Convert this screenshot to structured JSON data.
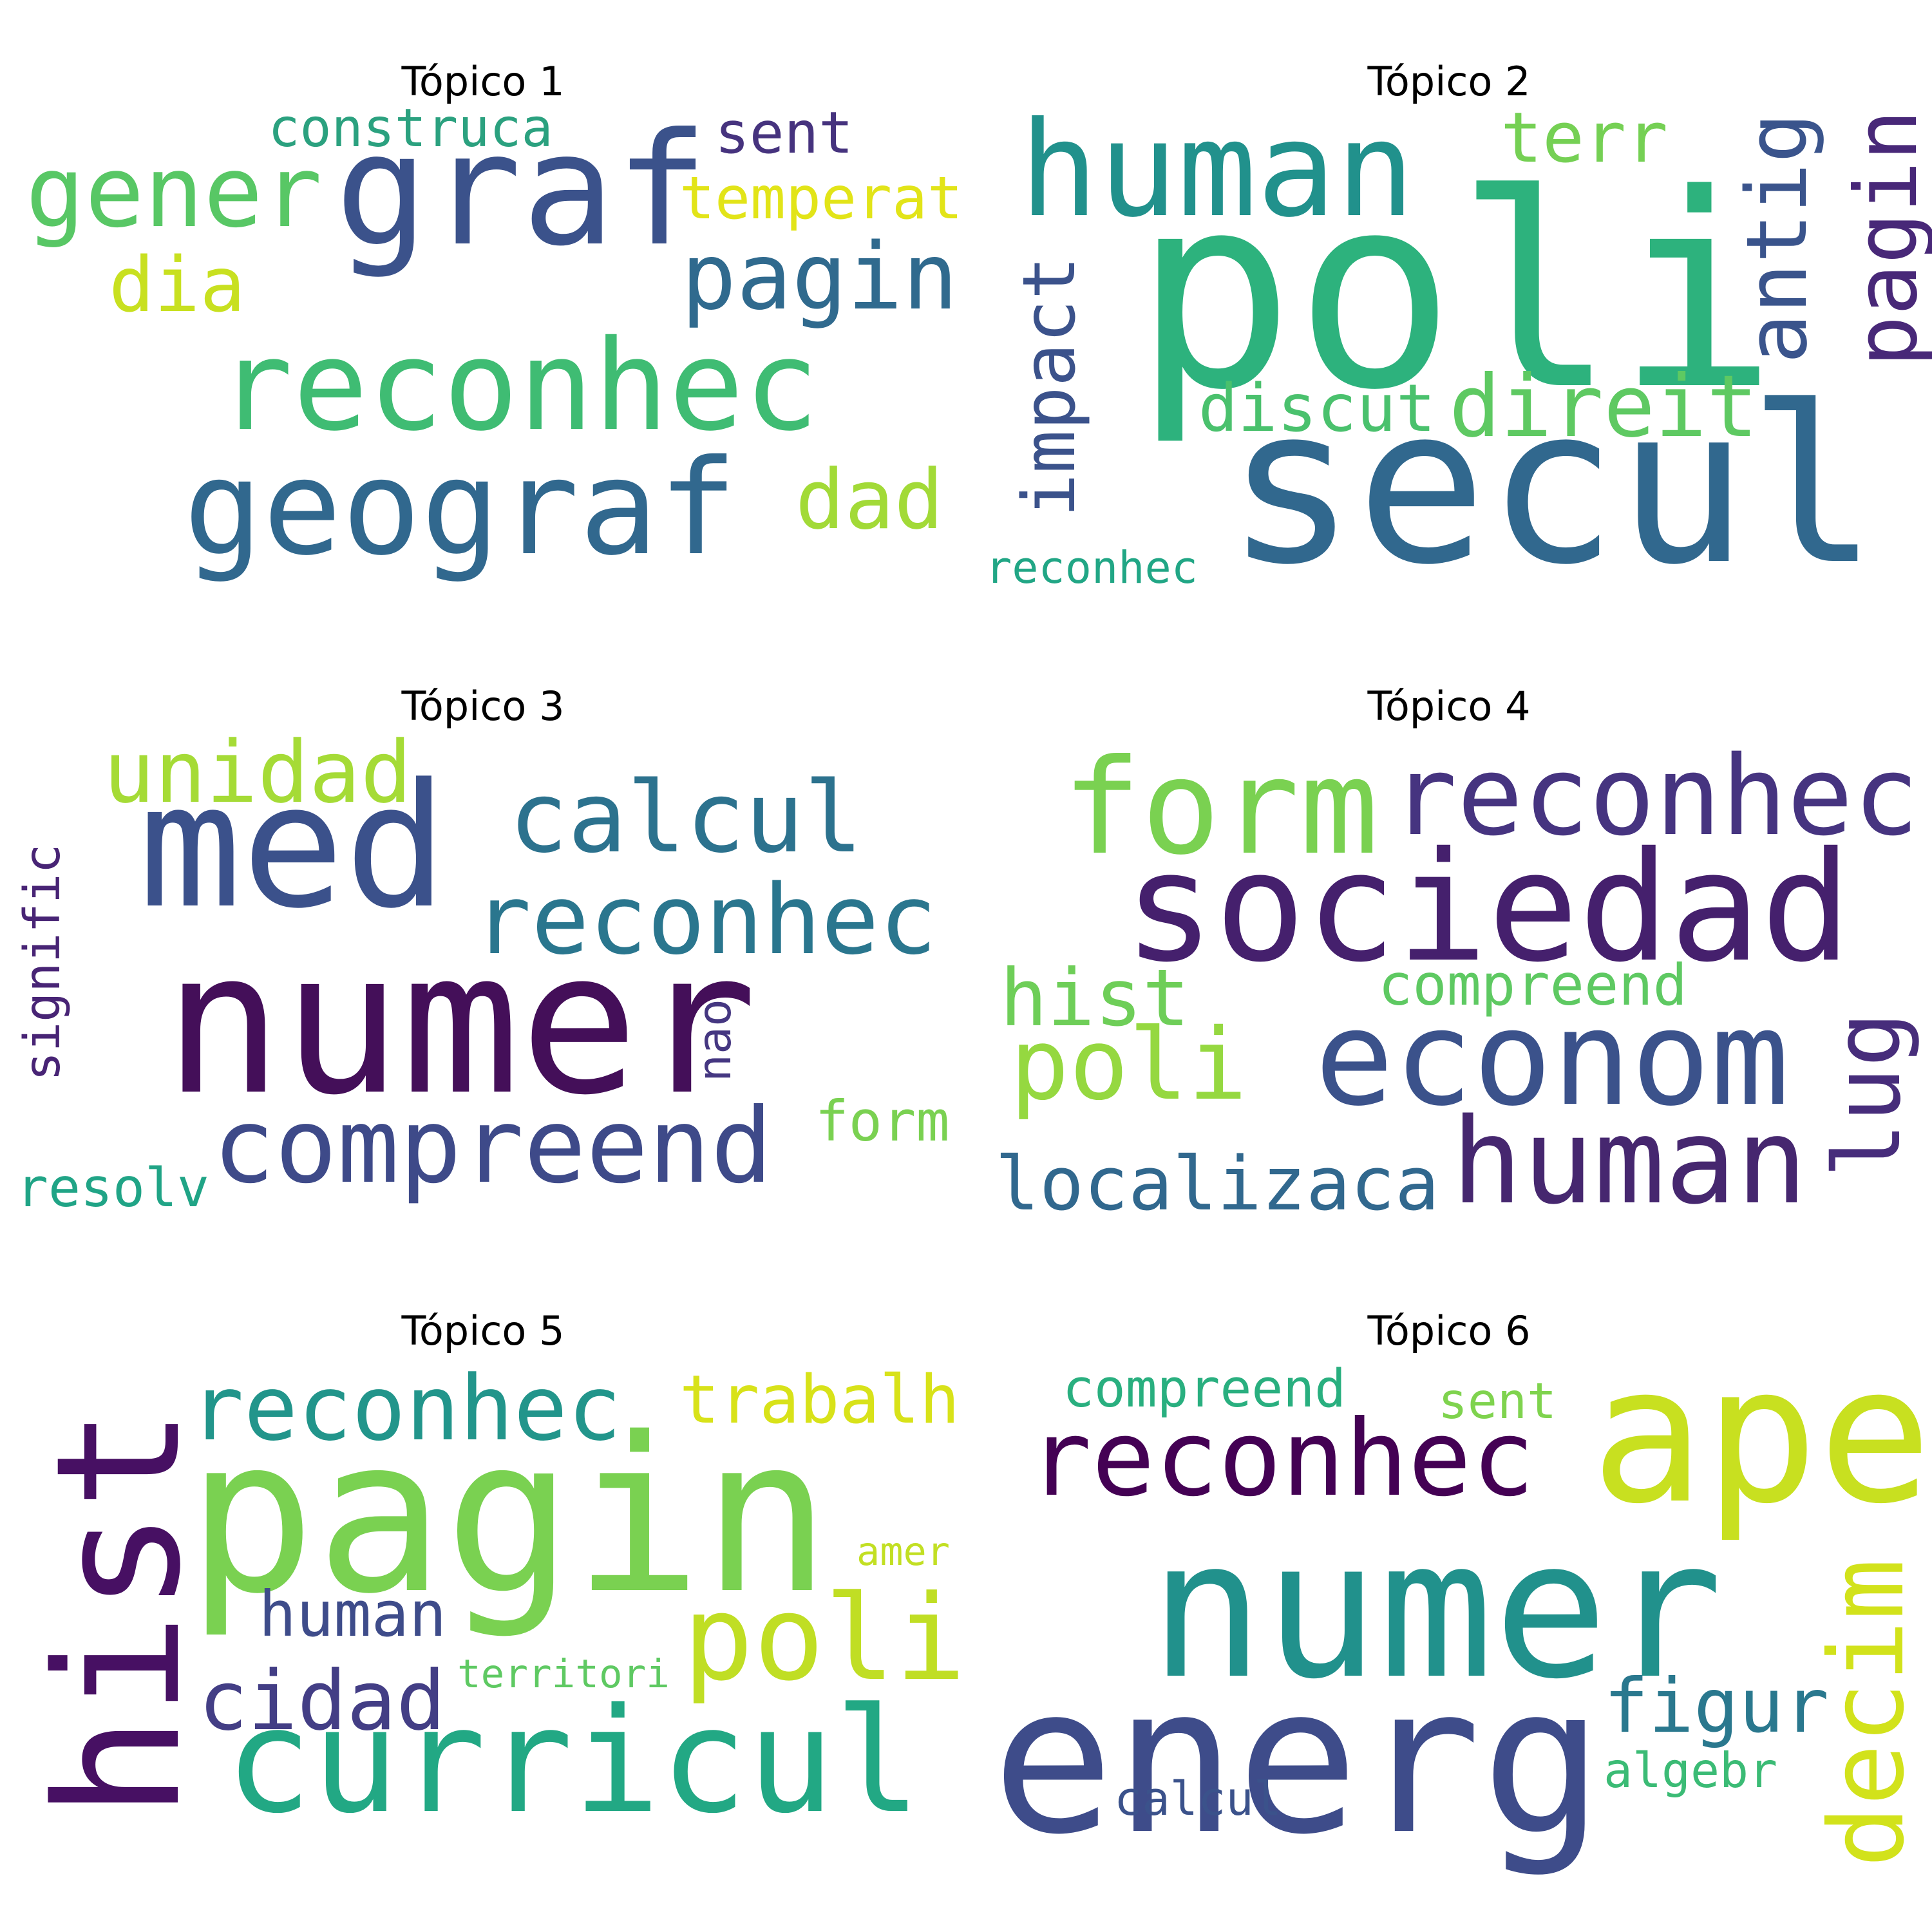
{
  "topics": [
    {
      "title": "Tópico 1",
      "words": [
        {
          "text": "reconhec",
          "color": "#3fbc73"
        },
        {
          "text": "graf",
          "color": "#3b528b"
        },
        {
          "text": "geograf",
          "color": "#31688e"
        },
        {
          "text": "gener",
          "color": "#58c765"
        },
        {
          "text": "pagin",
          "color": "#306a8e"
        },
        {
          "text": "dia",
          "color": "#c8e020"
        },
        {
          "text": "dad",
          "color": "#a2da37"
        },
        {
          "text": "construca",
          "color": "#2ba17f"
        },
        {
          "text": "sent",
          "color": "#46337e"
        },
        {
          "text": "temperat",
          "color": "#e2e418"
        }
      ]
    },
    {
      "title": "Tópico 2",
      "words": [
        {
          "text": "poli",
          "color": "#2db27d"
        },
        {
          "text": "secul",
          "color": "#31688e"
        },
        {
          "text": "human",
          "color": "#21918c"
        },
        {
          "text": "impact",
          "color": "#3b528b"
        },
        {
          "text": "terr",
          "color": "#75d054"
        },
        {
          "text": "antig",
          "color": "#3a548c"
        },
        {
          "text": "pagin",
          "color": "#482878"
        },
        {
          "text": "discut",
          "color": "#4ac16d"
        },
        {
          "text": "direit",
          "color": "#5ec962"
        },
        {
          "text": "reconhec",
          "color": "#21a685"
        }
      ]
    },
    {
      "title": "Tópico 3",
      "words": [
        {
          "text": "numer",
          "color": "#440f59"
        },
        {
          "text": "med",
          "color": "#3b518b"
        },
        {
          "text": "unidad",
          "color": "#a5db36"
        },
        {
          "text": "calcul",
          "color": "#2c728e"
        },
        {
          "text": "reconhec",
          "color": "#2a768e"
        },
        {
          "text": "compreend",
          "color": "#3e4a89"
        },
        {
          "text": "signific",
          "color": "#482475"
        },
        {
          "text": "nao",
          "color": "#453781"
        },
        {
          "text": "form",
          "color": "#7ad151"
        },
        {
          "text": "resolv",
          "color": "#20a486"
        }
      ]
    },
    {
      "title": "Tópico 4",
      "words": [
        {
          "text": "form",
          "color": "#7ad151"
        },
        {
          "text": "reconhec",
          "color": "#463480"
        },
        {
          "text": "sociedad",
          "color": "#45206d"
        },
        {
          "text": "hist",
          "color": "#6ece58"
        },
        {
          "text": "compreend",
          "color": "#5ec962"
        },
        {
          "text": "poli",
          "color": "#95d840"
        },
        {
          "text": "econom",
          "color": "#3b528b"
        },
        {
          "text": "lug",
          "color": "#472d7b"
        },
        {
          "text": "localizaca",
          "color": "#31688e"
        },
        {
          "text": "human",
          "color": "#46276f"
        }
      ]
    },
    {
      "title": "Tópico 5",
      "words": [
        {
          "text": "hist",
          "color": "#471063"
        },
        {
          "text": "pagin",
          "color": "#7ad151"
        },
        {
          "text": "reconhec",
          "color": "#22958b"
        },
        {
          "text": "trabalh",
          "color": "#d8e219"
        },
        {
          "text": "amer",
          "color": "#c2df23"
        },
        {
          "text": "human",
          "color": "#3e4c8a"
        },
        {
          "text": "poli",
          "color": "#c0de24"
        },
        {
          "text": "cidad",
          "color": "#433e85"
        },
        {
          "text": "territori",
          "color": "#5ec962"
        },
        {
          "text": "curricul",
          "color": "#22a884"
        }
      ]
    },
    {
      "title": "Tópico 6",
      "words": [
        {
          "text": "compreend",
          "color": "#29af7f"
        },
        {
          "text": "sent",
          "color": "#7fd34e"
        },
        {
          "text": "ape",
          "color": "#c8e020"
        },
        {
          "text": "reconhec",
          "color": "#440154"
        },
        {
          "text": "numer",
          "color": "#21918c"
        },
        {
          "text": "decim",
          "color": "#d2e21b"
        },
        {
          "text": "energ",
          "color": "#3e4c8a"
        },
        {
          "text": "figur",
          "color": "#2a788e"
        },
        {
          "text": "algebr",
          "color": "#3bbb75"
        },
        {
          "text": "calcul",
          "color": "#3b528b"
        }
      ]
    }
  ]
}
